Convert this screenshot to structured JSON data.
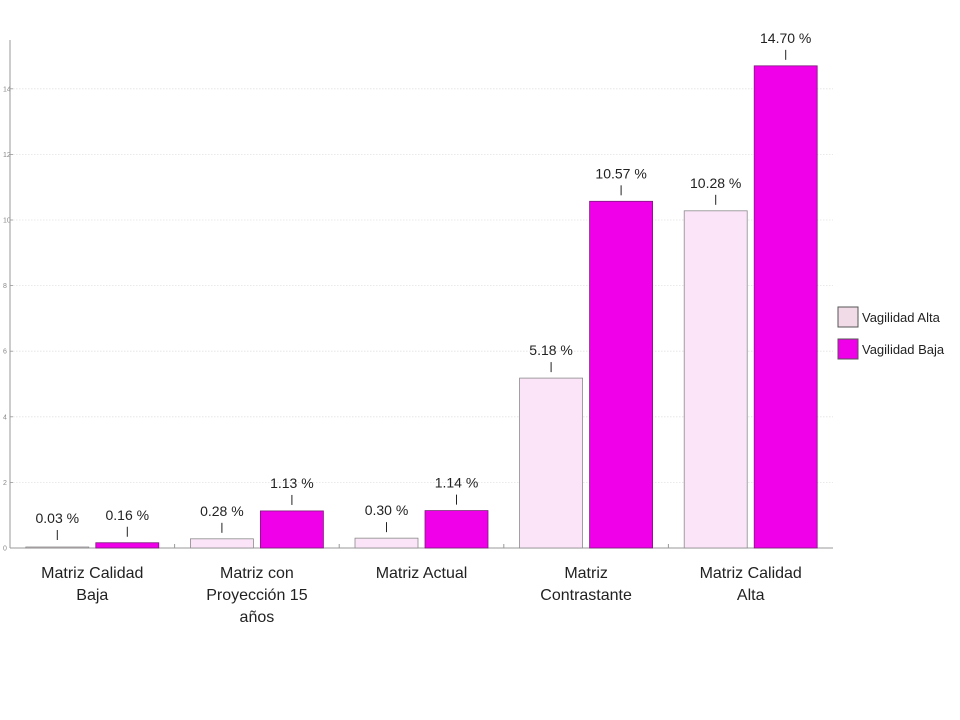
{
  "chart_data": {
    "type": "bar",
    "title": "",
    "xlabel": "",
    "ylabel": "",
    "ylim": [
      0,
      15.5
    ],
    "yticks": [
      0,
      2,
      4,
      6,
      8,
      10,
      12,
      14
    ],
    "grid": true,
    "legend_position": "right",
    "categories": [
      [
        "Matriz Calidad",
        "Baja"
      ],
      [
        "Matriz con",
        "Proyección 15",
        "años"
      ],
      [
        "Matriz Actual"
      ],
      [
        "Matriz",
        "Contrastante"
      ],
      [
        "Matriz Calidad",
        "Alta"
      ]
    ],
    "series": [
      {
        "name": "Vagilidad Alta",
        "color": "#fce4f8",
        "legend_color": "#f1dbe6",
        "values": [
          0.03,
          0.28,
          0.3,
          5.18,
          10.28
        ],
        "labels": [
          "0.03 %",
          "0.28 %",
          "0.30 %",
          "5.18 %",
          "10.28 %"
        ]
      },
      {
        "name": "Vagilidad Baja",
        "color": "#f000e8",
        "legend_color": "#f000e8",
        "values": [
          0.16,
          1.13,
          1.14,
          10.57,
          14.7
        ],
        "labels": [
          "0.16 %",
          "1.13 %",
          "1.14 %",
          "10.57 %",
          "14.70 %"
        ]
      }
    ]
  }
}
